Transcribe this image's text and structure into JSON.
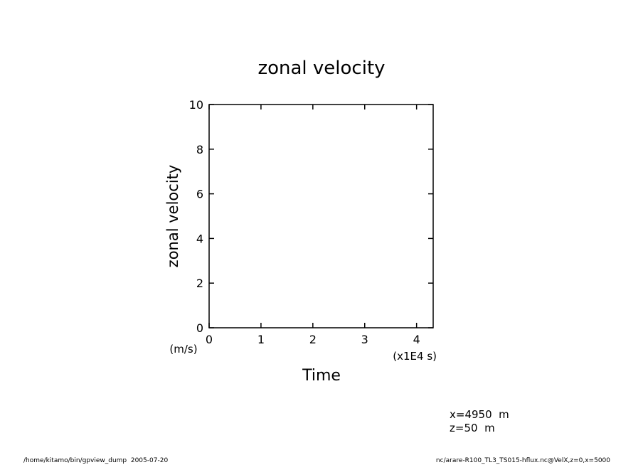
{
  "chart_data": {
    "type": "line",
    "title": "zonal velocity",
    "x_label": "Time",
    "y_label": "zonal velocity",
    "x_unit": "(x1E4 s)",
    "y_unit": "(m/s)",
    "xlim": [
      0,
      4.32
    ],
    "xticks": [
      0,
      1,
      2,
      3,
      4
    ],
    "ylim": [
      0,
      10
    ],
    "yticks": [
      0,
      2,
      4,
      6,
      8,
      10
    ],
    "annotations": [
      "x=4950  m",
      "z=50  m"
    ],
    "footer_left": "/home/kitamo/bin/gpview_dump  2005-07-20",
    "footer_right": "nc/arare-R100_TL3_TS015-hflux.nc@VelX,z=0,x=5000"
  }
}
